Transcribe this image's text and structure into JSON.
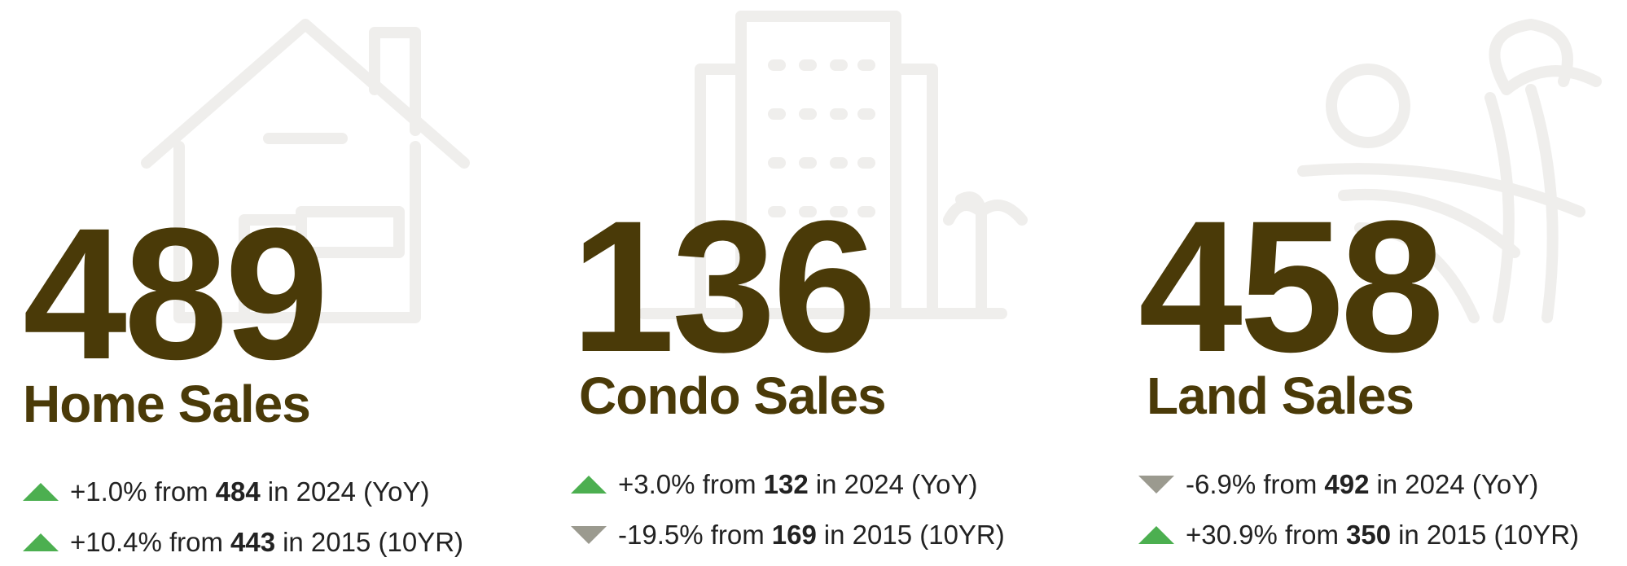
{
  "cards": [
    {
      "number": "489",
      "label": "Home Sales",
      "changes": [
        {
          "direction": "up",
          "change": "+1.0% from",
          "base": "484",
          "period": "in 2024 (YoY)"
        },
        {
          "direction": "up",
          "change": "+10.4% from",
          "base": "443",
          "period": "in 2015 (10YR)"
        }
      ]
    },
    {
      "number": "136",
      "label": "Condo Sales",
      "changes": [
        {
          "direction": "up",
          "change": "+3.0% from",
          "base": "132",
          "period": "in 2024 (YoY)"
        },
        {
          "direction": "down",
          "change": "-19.5% from",
          "base": "169",
          "period": "in 2015 (10YR)"
        }
      ]
    },
    {
      "number": "458",
      "label": "Land Sales",
      "changes": [
        {
          "direction": "down",
          "change": "-6.9% from",
          "base": "492",
          "period": "in 2024 (YoY)"
        },
        {
          "direction": "up",
          "change": "+30.9% from",
          "base": "350",
          "period": "in 2015 (10YR)"
        }
      ]
    }
  ]
}
